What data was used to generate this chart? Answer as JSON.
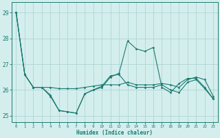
{
  "xlabel": "Humidex (Indice chaleur)",
  "background_color": "#d4eeee",
  "grid_color": "#b0d4d4",
  "line_color": "#1a7a6e",
  "spine_color": "#1a7a6e",
  "xlim": [
    -0.5,
    23.5
  ],
  "ylim": [
    24.75,
    29.4
  ],
  "yticks": [
    25,
    26,
    27,
    28,
    29
  ],
  "xticks": [
    0,
    1,
    2,
    3,
    4,
    5,
    6,
    7,
    8,
    9,
    10,
    11,
    12,
    13,
    14,
    15,
    16,
    17,
    18,
    19,
    20,
    21,
    22,
    23
  ],
  "series": [
    [
      29.0,
      26.6,
      26.1,
      26.1,
      26.1,
      26.05,
      26.05,
      26.05,
      26.1,
      26.15,
      26.2,
      26.2,
      26.2,
      26.3,
      26.2,
      26.2,
      26.2,
      26.25,
      26.2,
      26.1,
      26.4,
      26.5,
      26.4,
      25.75
    ],
    [
      29.0,
      26.6,
      26.1,
      26.1,
      25.75,
      25.2,
      25.15,
      25.1,
      25.85,
      26.0,
      26.1,
      26.5,
      26.65,
      27.9,
      27.6,
      27.5,
      27.65,
      26.1,
      25.9,
      26.25,
      26.45,
      26.45,
      26.1,
      25.65
    ],
    [
      29.0,
      26.6,
      26.1,
      26.1,
      25.8,
      25.2,
      25.15,
      25.1,
      25.85,
      26.0,
      26.15,
      26.55,
      26.6,
      26.2,
      26.1,
      26.1,
      26.1,
      26.2,
      26.0,
      25.9,
      26.3,
      26.4,
      26.05,
      25.65
    ]
  ]
}
